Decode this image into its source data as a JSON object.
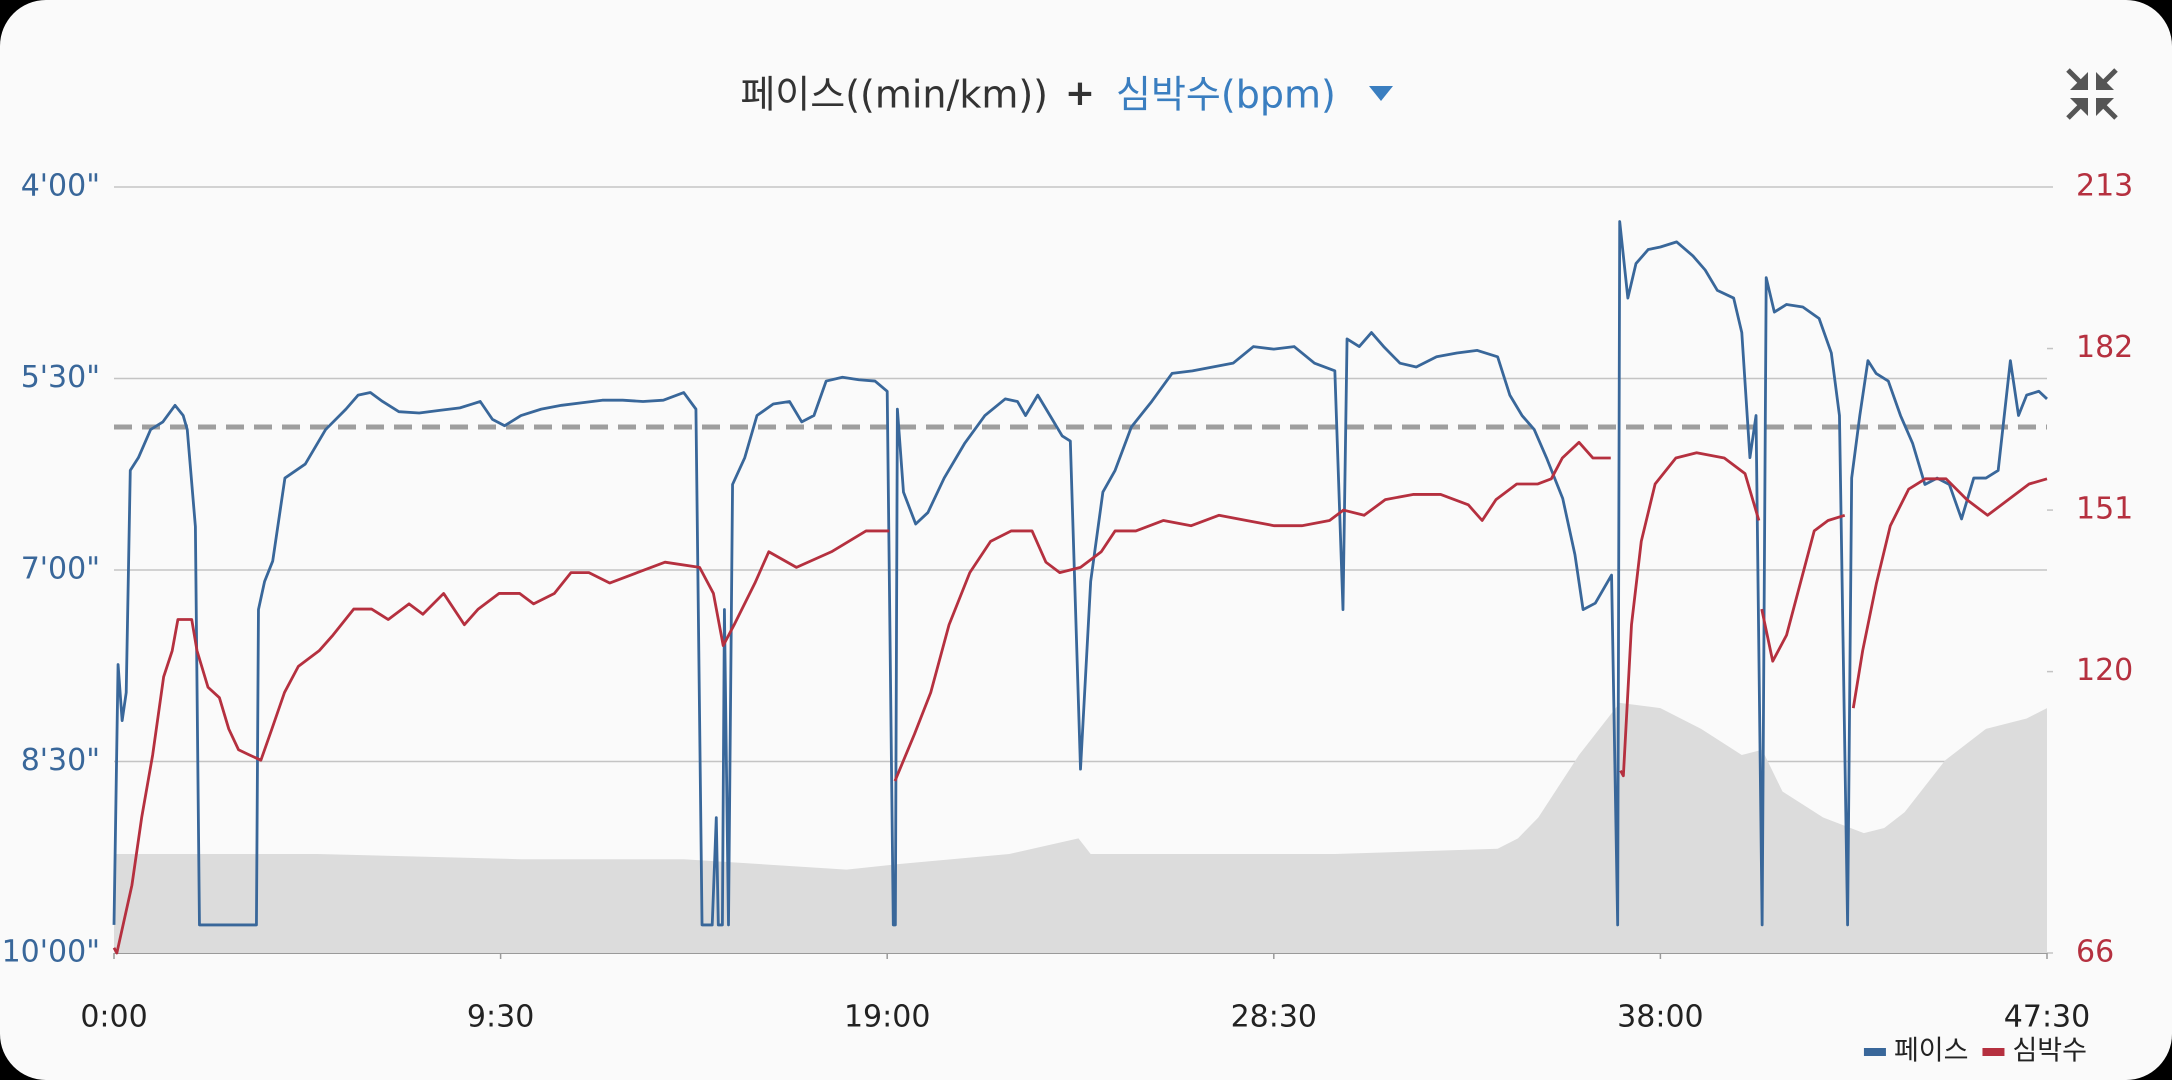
{
  "chart_data": {
    "type": "line",
    "title": {
      "primary": "페이스((min/km))",
      "joiner": "+",
      "secondary": "심박수(bpm)"
    },
    "xlim": [
      0,
      47.5
    ],
    "xticks": [
      {
        "value": 0,
        "label": "0:00"
      },
      {
        "value": 9.5,
        "label": "9:30"
      },
      {
        "value": 19,
        "label": "19:00"
      },
      {
        "value": 28.5,
        "label": "28:30"
      },
      {
        "value": 38,
        "label": "38:00"
      },
      {
        "value": 47.5,
        "label": "47:30"
      }
    ],
    "ylim": [
      10,
      4
    ],
    "yticks": [
      {
        "value": 4,
        "label": "4'00\""
      },
      {
        "value": 5.5,
        "label": "5'30\""
      },
      {
        "value": 7,
        "label": "7'00\""
      },
      {
        "value": 8.5,
        "label": "8'30\""
      },
      {
        "value": 10,
        "label": "10'00\""
      }
    ],
    "y2lim": [
      66,
      213
    ],
    "y2ticks": [
      66,
      120,
      151,
      182,
      213
    ],
    "grid": true,
    "legend": "bottom-right",
    "reference_line": {
      "value": 5.88,
      "color": "#9e9e9e",
      "dashed": true
    },
    "series": [
      {
        "kind": "area",
        "axis": "y2",
        "color": "#dcdcdc",
        "x": [
          0,
          5,
          10,
          14,
          18,
          19.2,
          22,
          23.7,
          24,
          30,
          34,
          34.5,
          35,
          36,
          37,
          38,
          39,
          40,
          40.5,
          41,
          42,
          43,
          43.5,
          44,
          45,
          46,
          47,
          47.5
        ],
        "values": [
          85,
          85,
          84,
          84,
          82,
          83,
          85,
          88,
          85,
          85,
          86,
          88,
          92,
          104,
          114,
          113,
          109,
          104,
          105,
          97,
          92,
          89,
          90,
          93,
          103,
          109,
          111,
          113
        ]
      },
      {
        "name": "페이스",
        "color": "#39679a",
        "x": [
          0,
          0.1,
          0.2,
          0.3,
          0.4,
          0.6,
          0.9,
          1.2,
          1.5,
          1.7,
          1.8,
          2.0,
          2.1,
          3.5,
          3.55,
          3.7,
          3.9,
          4.2,
          4.7,
          5.2,
          5.7,
          6.0,
          6.3,
          6.6,
          7.0,
          7.5,
          8.0,
          8.5,
          8.8,
          9.0,
          9.3,
          9.6,
          10.0,
          10.5,
          11.0,
          11.5,
          12.0,
          12.5,
          13.0,
          13.5,
          14.0,
          14.3,
          14.45,
          14.7,
          14.8,
          14.85,
          14.95,
          15.0,
          15.1,
          15.2,
          15.5,
          15.8,
          16.2,
          16.6,
          16.9,
          17.2,
          17.5,
          17.9,
          18.3,
          18.7,
          19.0,
          19.15,
          19.2,
          19.25,
          19.4,
          19.7,
          20.0,
          20.4,
          20.9,
          21.4,
          21.9,
          22.2,
          22.4,
          22.7,
          23.0,
          23.3,
          23.5,
          23.75,
          24.0,
          24.3,
          24.6,
          25.0,
          25.5,
          26.0,
          26.5,
          27.0,
          27.5,
          28.0,
          28.5,
          29.0,
          29.5,
          30.0,
          30.2,
          30.3,
          30.6,
          30.9,
          31.2,
          31.6,
          32.0,
          32.5,
          33.0,
          33.5,
          34.0,
          34.3,
          34.6,
          34.9,
          35.2,
          35.6,
          35.9,
          36.1,
          36.4,
          36.8,
          36.95,
          37.0,
          37.2,
          37.4,
          37.7,
          38.0,
          38.4,
          38.8,
          39.1,
          39.4,
          39.8,
          40.0,
          40.2,
          40.35,
          40.5,
          40.6,
          40.8,
          41.1,
          41.5,
          41.9,
          42.2,
          42.4,
          42.6,
          42.7,
          42.9,
          43.1,
          43.3,
          43.6,
          43.9,
          44.2,
          44.5,
          44.8,
          45.1,
          45.4,
          45.7,
          46.0,
          46.3,
          46.6,
          46.8,
          47.0,
          47.3,
          47.5
        ],
        "values": [
          9.78,
          7.74,
          8.18,
          7.96,
          6.22,
          6.12,
          5.9,
          5.84,
          5.71,
          5.79,
          5.9,
          6.66,
          9.78,
          9.78,
          7.31,
          7.09,
          6.93,
          6.28,
          6.17,
          5.9,
          5.74,
          5.63,
          5.61,
          5.68,
          5.76,
          5.77,
          5.75,
          5.73,
          5.7,
          5.68,
          5.82,
          5.87,
          5.79,
          5.74,
          5.71,
          5.69,
          5.67,
          5.67,
          5.68,
          5.67,
          5.61,
          5.74,
          9.78,
          9.78,
          8.94,
          9.78,
          9.78,
          7.31,
          9.78,
          6.33,
          6.12,
          5.79,
          5.7,
          5.68,
          5.84,
          5.79,
          5.52,
          5.49,
          5.51,
          5.52,
          5.6,
          9.78,
          9.78,
          5.74,
          6.39,
          6.64,
          6.55,
          6.28,
          6.01,
          5.79,
          5.66,
          5.68,
          5.79,
          5.63,
          5.79,
          5.95,
          5.99,
          8.56,
          7.09,
          6.39,
          6.22,
          5.88,
          5.68,
          5.46,
          5.44,
          5.41,
          5.38,
          5.25,
          5.27,
          5.25,
          5.38,
          5.44,
          7.31,
          5.19,
          5.25,
          5.14,
          5.25,
          5.38,
          5.41,
          5.33,
          5.3,
          5.28,
          5.33,
          5.63,
          5.79,
          5.9,
          6.12,
          6.44,
          6.88,
          7.31,
          7.26,
          7.04,
          9.78,
          4.27,
          4.87,
          4.6,
          4.49,
          4.47,
          4.43,
          4.54,
          4.65,
          4.81,
          4.87,
          5.14,
          6.12,
          5.79,
          9.78,
          4.71,
          4.98,
          4.92,
          4.94,
          5.03,
          5.3,
          5.79,
          9.78,
          6.28,
          5.79,
          5.36,
          5.46,
          5.52,
          5.79,
          6.01,
          6.33,
          6.28,
          6.33,
          6.6,
          6.28,
          6.28,
          6.22,
          5.36,
          5.79,
          5.63,
          5.6,
          5.66
        ]
      },
      {
        "name": "심박수",
        "color": "#b5303f",
        "axis": "y2",
        "x": [
          0,
          0.07,
          0.44,
          0.68,
          0.95,
          1.22,
          1.43,
          1.57,
          1.91,
          2.04,
          2.31,
          2.59,
          2.82,
          3.06,
          3.33,
          3.61,
          3.88,
          4.19,
          4.53,
          5.04,
          5.38,
          5.89,
          6.33,
          6.74,
          7.25,
          7.59,
          8.1,
          8.61,
          8.95,
          9.46,
          9.97,
          10.31,
          10.82,
          11.23,
          11.67,
          12.18,
          12.86,
          13.54,
          14.39,
          14.73,
          14.97,
          15.24,
          15.75,
          16.09,
          16.77,
          17.63,
          18.48,
          19.05,
          19.12,
          19.19,
          19.67,
          20.07,
          20.52,
          21.03,
          21.54,
          22.05,
          22.56,
          22.9,
          23.24,
          23.75,
          24.26,
          24.6,
          25.11,
          25.79,
          26.47,
          27.15,
          27.83,
          28.51,
          29.19,
          29.87,
          30.21,
          30.72,
          31.24,
          31.92,
          32.6,
          33.28,
          33.62,
          33.96,
          34.47,
          34.98,
          35.32,
          35.59,
          36.0,
          36.34,
          36.78,
          36.9,
          37.02,
          37.09,
          37.29,
          37.53,
          37.87,
          38.38,
          38.89,
          39.57,
          40.08,
          40.42,
          40.45,
          40.49,
          40.76,
          41.1,
          41.44,
          41.78,
          42.12,
          42.53,
          42.63,
          42.74,
          42.97,
          43.31,
          43.65,
          44.1,
          44.51,
          45.02,
          45.53,
          46.04,
          46.55,
          47.06,
          47.5
        ],
        "values": [
          67,
          66,
          79,
          92,
          104,
          119,
          124,
          130,
          130,
          124,
          117,
          115,
          109,
          105,
          104,
          103,
          109,
          116,
          121,
          124,
          127,
          132,
          132,
          130,
          133,
          131,
          135,
          129,
          132,
          135,
          135,
          133,
          135,
          139,
          139,
          137,
          139,
          141,
          140,
          135,
          125,
          129,
          137,
          143,
          140,
          143,
          147,
          147,
          null,
          99,
          108,
          116,
          129,
          139,
          145,
          147,
          147,
          141,
          139,
          140,
          143,
          147,
          147,
          149,
          148,
          150,
          149,
          148,
          148,
          149,
          151,
          150,
          153,
          154,
          154,
          152,
          149,
          153,
          156,
          156,
          157,
          161,
          164,
          161,
          161,
          null,
          101,
          100,
          129,
          145,
          156,
          161,
          162,
          161,
          158,
          149,
          null,
          132,
          122,
          127,
          137,
          147,
          149,
          150,
          null,
          113,
          124,
          137,
          148,
          155,
          157,
          157,
          153,
          150,
          153,
          156,
          157
        ]
      }
    ]
  }
}
